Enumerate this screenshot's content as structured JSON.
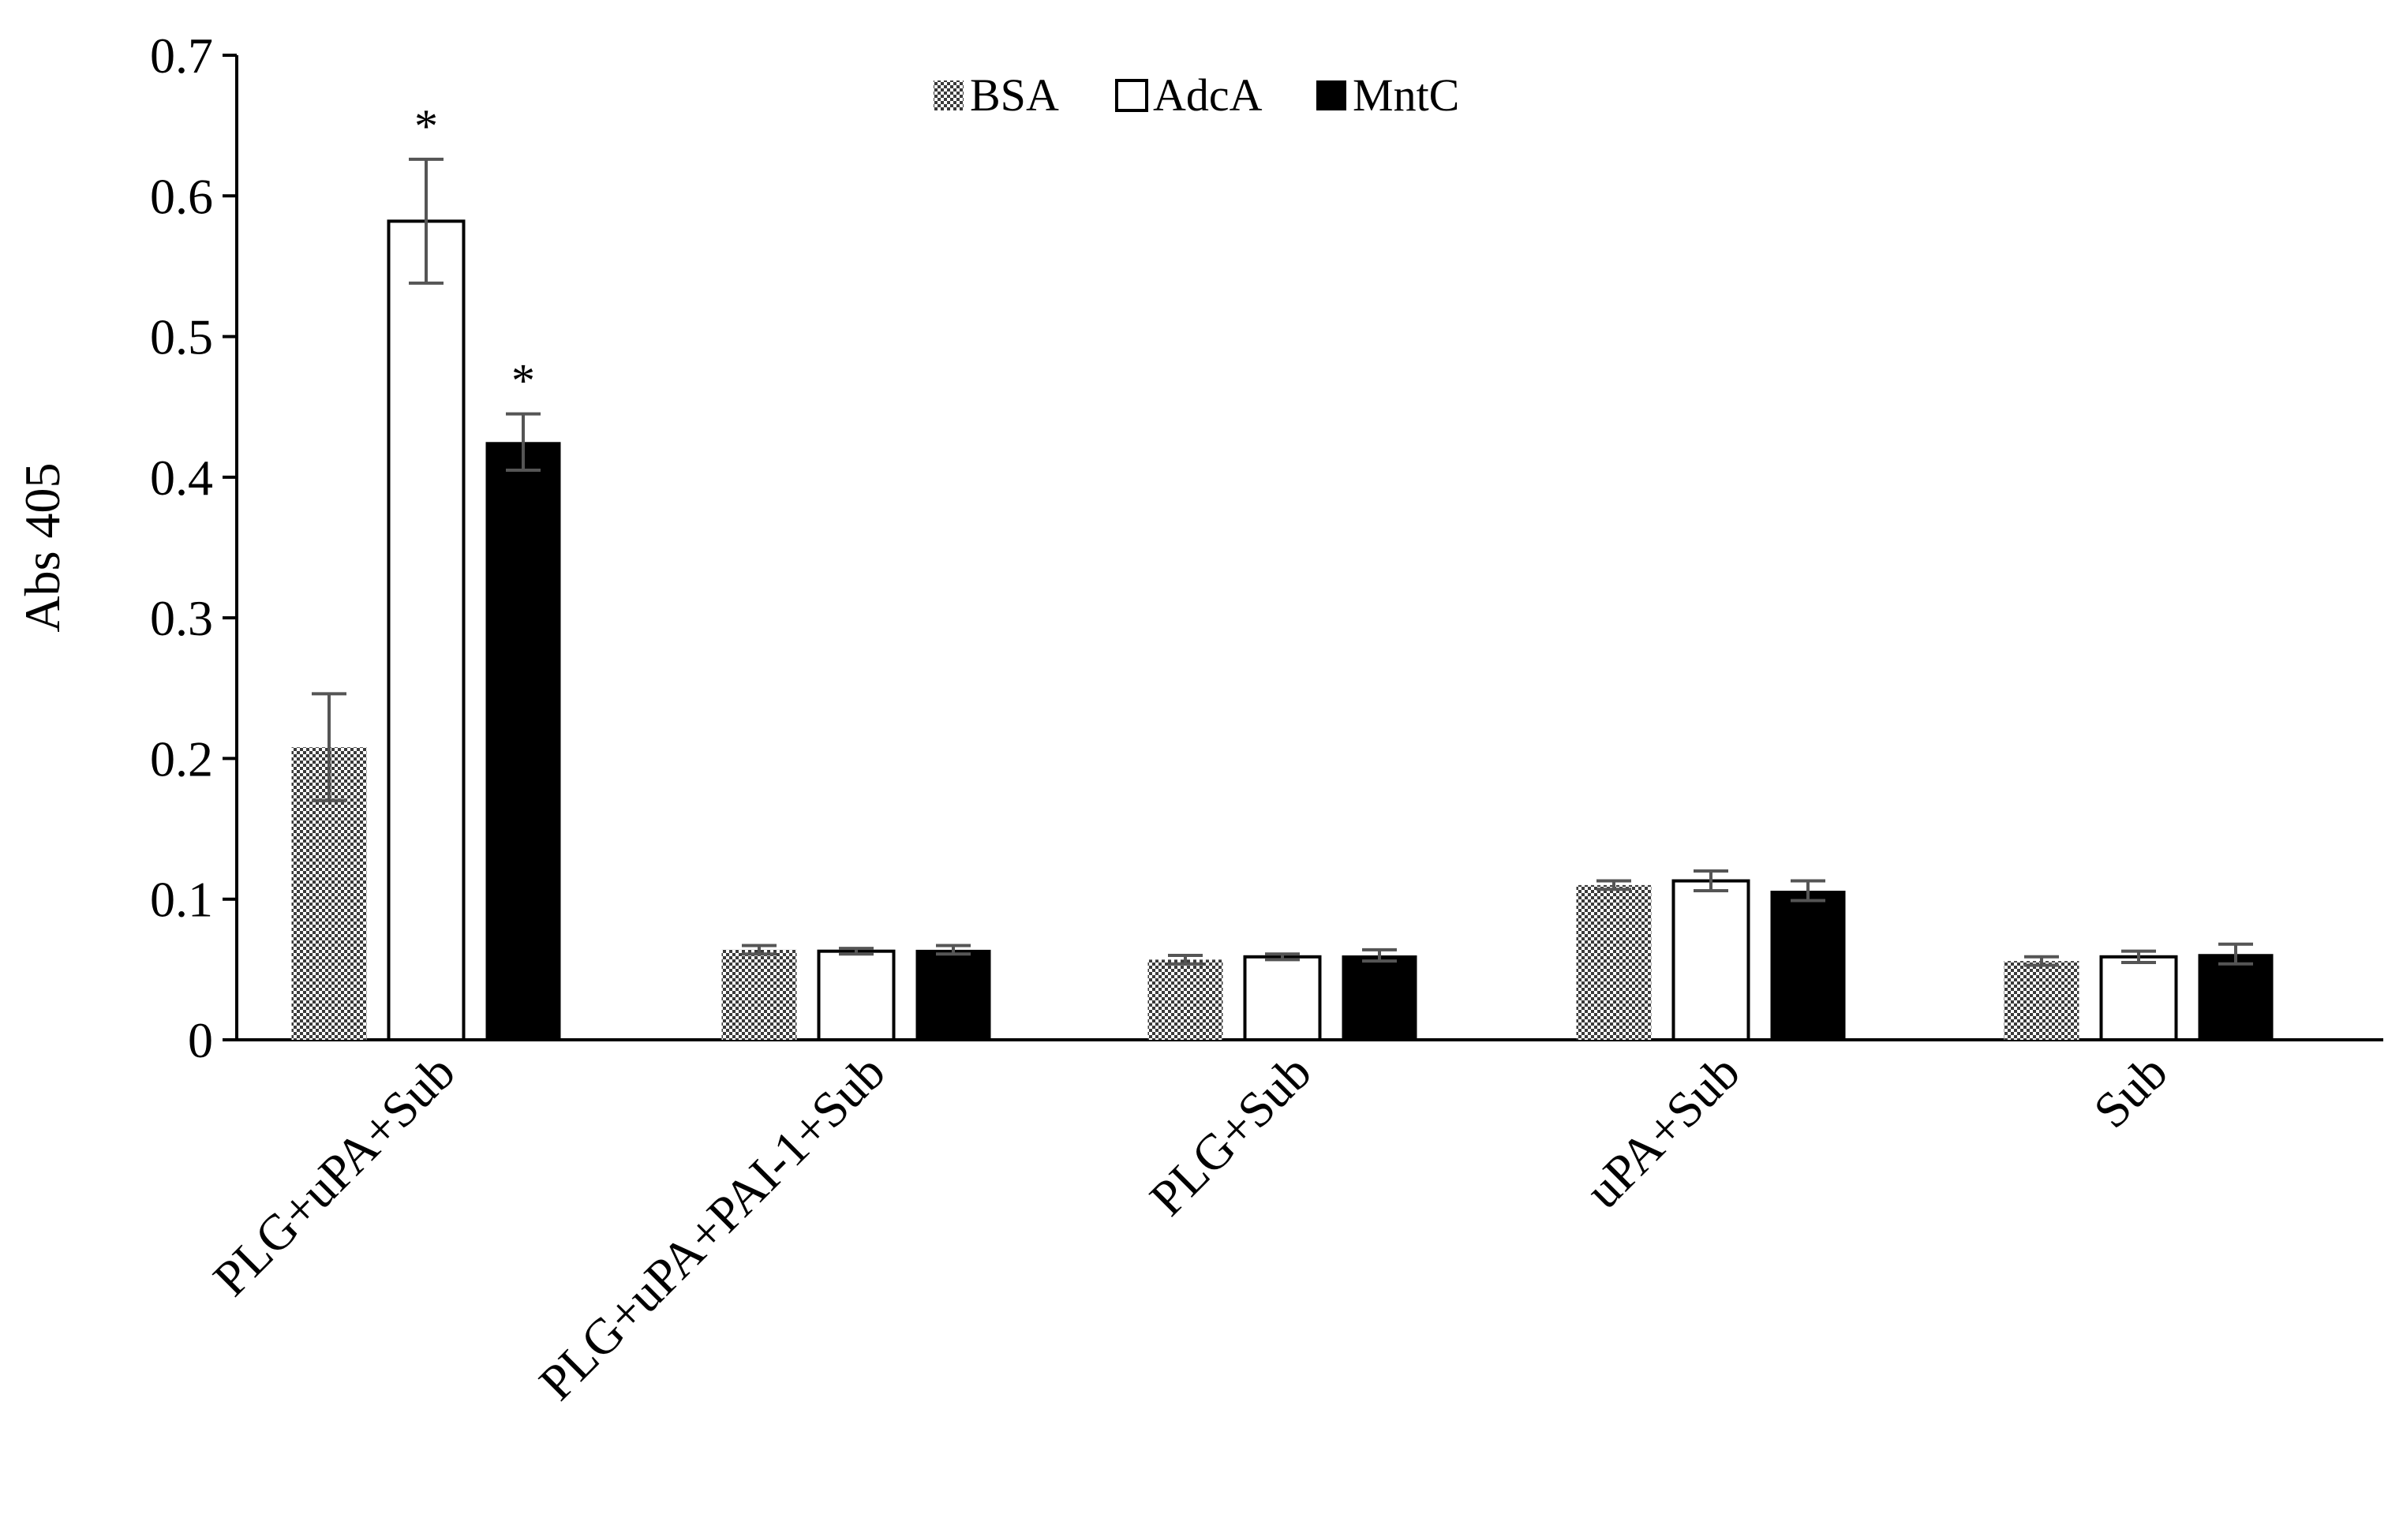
{
  "chart_data": {
    "type": "bar",
    "ylabel": "Abs 405",
    "xlabel": "",
    "ylim": [
      0,
      0.7
    ],
    "yticks": [
      "0",
      "0.1",
      "0.2",
      "0.3",
      "0.4",
      "0.5",
      "0.6",
      "0.7"
    ],
    "categories": [
      "PLG+uPA+Sub",
      "PLG+uPA+PAI-1+Sub",
      "PLG+Sub",
      "uPA+Sub",
      "Sub"
    ],
    "series": [
      {
        "name": "BSA",
        "fill": "checker",
        "values": [
          0.208,
          0.064,
          0.057,
          0.11,
          0.056
        ],
        "errors": [
          0.038,
          0.003,
          0.003,
          0.003,
          0.003
        ]
      },
      {
        "name": "AdcA",
        "fill": "#ffffff",
        "values": [
          0.582,
          0.063,
          0.059,
          0.113,
          0.059
        ],
        "errors": [
          0.044,
          0.002,
          0.002,
          0.007,
          0.004
        ]
      },
      {
        "name": "MntC",
        "fill": "#000000",
        "values": [
          0.425,
          0.064,
          0.06,
          0.106,
          0.061
        ],
        "errors": [
          0.02,
          0.003,
          0.004,
          0.007,
          0.007
        ]
      }
    ],
    "significance": [
      {
        "category": 0,
        "series": 1,
        "label": "*"
      },
      {
        "category": 0,
        "series": 2,
        "label": "*"
      }
    ],
    "legend_position": "top-center",
    "grid": false
  }
}
